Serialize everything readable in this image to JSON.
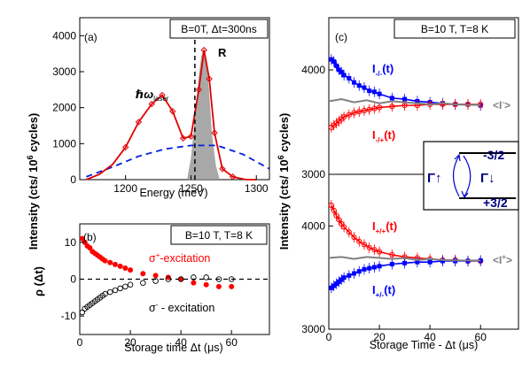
{
  "chart_data": [
    {
      "panel_label": "(a)",
      "type": "line",
      "header": "B=0T, Δt=300ns",
      "xlabel": "Energy (meV)",
      "xlim": [
        1165,
        1310
      ],
      "ylim": [
        0,
        4500
      ],
      "x_ticks": [
        "1200",
        "1250",
        "1300"
      ],
      "y_ticks": [
        "0",
        "1000",
        "2000",
        "3000",
        "4000"
      ],
      "annotations": {
        "peak": "R",
        "laser_symbol": "ℏω",
        "laser_sub": "laser"
      },
      "laser_energy": 1253,
      "series": [
        {
          "role": "spectrum",
          "color": "#e00000",
          "x": [
            1170,
            1180,
            1190,
            1200,
            1210,
            1220,
            1228,
            1236,
            1244,
            1250,
            1256,
            1260,
            1264,
            1268,
            1274,
            1282,
            1292,
            1300
          ],
          "y": [
            0,
            150,
            420,
            900,
            1600,
            2100,
            2350,
            1900,
            1150,
            1200,
            2500,
            3600,
            2800,
            1300,
            300,
            80,
            0,
            0
          ]
        },
        {
          "role": "filled_peak",
          "color": "#999999",
          "x": [
            1247,
            1250,
            1253,
            1256,
            1258,
            1260,
            1262,
            1264,
            1266,
            1269,
            1272
          ],
          "y": [
            0,
            600,
            1700,
            2900,
            3450,
            3650,
            3300,
            2400,
            1300,
            400,
            0
          ]
        },
        {
          "role": "broad_background",
          "color": "#0020e0",
          "x": [
            1170,
            1190,
            1210,
            1230,
            1250,
            1270,
            1290,
            1310
          ],
          "y": [
            80,
            350,
            650,
            850,
            950,
            950,
            700,
            300
          ]
        }
      ]
    },
    {
      "panel_label": "(b)",
      "type": "scatter",
      "header": "B=10 T, T=8 K",
      "xlabel": "Storage time Δt (μs)",
      "ylabel": "ρ (Δt)",
      "xlim": [
        0,
        75
      ],
      "ylim": [
        -15,
        15
      ],
      "x_ticks": [
        "0",
        "20",
        "40",
        "60"
      ],
      "y_ticks": [
        "-10",
        "0",
        "10"
      ],
      "series": [
        {
          "name_main": "σ",
          "name_sup": "+",
          "name_rest": "-excitation",
          "color": "#ff0000",
          "x": [
            1,
            2,
            3,
            4,
            5,
            6,
            7,
            8,
            9,
            10,
            12,
            14,
            16,
            18,
            20,
            25,
            30,
            35,
            40,
            45,
            50,
            55,
            60
          ],
          "y": [
            11,
            10,
            9,
            8.5,
            7.5,
            7,
            6.5,
            6,
            5.5,
            5,
            4.5,
            4,
            3.5,
            3,
            2.5,
            1.5,
            1,
            0.5,
            0,
            -1,
            -1.5,
            -2,
            -2
          ]
        },
        {
          "name_main": "σ",
          "name_sup": "-",
          "name_rest": " - excitation",
          "color": "#000000",
          "x": [
            1,
            2,
            3,
            4,
            5,
            6,
            7,
            8,
            9,
            10,
            12,
            14,
            16,
            18,
            20,
            25,
            30,
            35,
            40,
            45,
            50,
            55,
            60
          ],
          "y": [
            -9,
            -8,
            -7.5,
            -7,
            -6.5,
            -6,
            -5.5,
            -5,
            -4.5,
            -4,
            -3.5,
            -3,
            -2.5,
            -2,
            -1.5,
            -1,
            -0.5,
            0,
            0,
            0.5,
            0.5,
            0,
            0
          ]
        }
      ]
    },
    {
      "panel_label": "(c)",
      "type": "scatter",
      "header": "B=10 T, T=8 K",
      "xlabel": "Storage Time - Δt (μs)",
      "xlim": [
        0,
        75
      ],
      "x_ticks": [
        "0",
        "20",
        "40",
        "60"
      ],
      "subplots": [
        {
          "ylim": [
            3000,
            4500
          ],
          "y_ticks": [
            "3000",
            "4000"
          ],
          "series": [
            {
              "name_main": "I",
              "name_sub": "-/-",
              "name_tail": "(t)",
              "color": "#0000ff",
              "x": [
                1,
                2,
                3,
                4,
                5,
                6,
                8,
                10,
                12,
                14,
                16,
                18,
                20,
                25,
                30,
                35,
                40,
                45,
                50,
                55,
                60
              ],
              "y": [
                4100,
                4080,
                4040,
                4000,
                3980,
                3950,
                3920,
                3880,
                3850,
                3830,
                3800,
                3790,
                3770,
                3730,
                3720,
                3700,
                3690,
                3680,
                3670,
                3670,
                3660
              ]
            },
            {
              "name_main": "I",
              "name_sub": "-/+",
              "name_tail": "(t)",
              "color": "#ff0000",
              "x": [
                1,
                2,
                3,
                4,
                5,
                6,
                8,
                10,
                12,
                14,
                16,
                18,
                20,
                25,
                30,
                35,
                40,
                45,
                50,
                55,
                60
              ],
              "y": [
                3450,
                3470,
                3490,
                3510,
                3530,
                3550,
                3570,
                3590,
                3600,
                3610,
                3620,
                3630,
                3640,
                3650,
                3660,
                3660,
                3670,
                3670,
                3670,
                3670,
                3670
              ]
            },
            {
              "name_main": "<I",
              "name_sup": "-",
              "name_tail": ">",
              "color": "#808080",
              "x": [
                0,
                5,
                10,
                15,
                20,
                25,
                30,
                35,
                40,
                45,
                50,
                55,
                60
              ],
              "y": [
                3700,
                3720,
                3690,
                3710,
                3680,
                3700,
                3690,
                3680,
                3670,
                3680,
                3670,
                3665,
                3665
              ]
            }
          ]
        },
        {
          "ylim": [
            3000,
            4500
          ],
          "y_ticks": [
            "3000",
            "4000"
          ],
          "series": [
            {
              "name_main": "I",
              "name_sub": "+/+",
              "name_tail": "(t)",
              "color": "#ff0000",
              "x": [
                1,
                2,
                3,
                4,
                5,
                6,
                8,
                10,
                12,
                14,
                16,
                18,
                20,
                25,
                30,
                35,
                40,
                45,
                50,
                55,
                60
              ],
              "y": [
                4200,
                4150,
                4100,
                4060,
                4020,
                3990,
                3940,
                3890,
                3850,
                3820,
                3790,
                3770,
                3750,
                3720,
                3700,
                3690,
                3680,
                3670,
                3670,
                3660,
                3660
              ]
            },
            {
              "name_main": "I",
              "name_sub": "+/-",
              "name_tail": "(t)",
              "color": "#0000ff",
              "x": [
                1,
                2,
                3,
                4,
                5,
                6,
                8,
                10,
                12,
                14,
                16,
                18,
                20,
                25,
                30,
                35,
                40,
                45,
                50,
                55,
                60
              ],
              "y": [
                3400,
                3420,
                3440,
                3460,
                3480,
                3500,
                3520,
                3540,
                3560,
                3580,
                3590,
                3600,
                3610,
                3630,
                3640,
                3650,
                3650,
                3660,
                3660,
                3660,
                3665
              ]
            },
            {
              "name_main": "<I",
              "name_sup": "+",
              "name_tail": ">",
              "color": "#808080",
              "x": [
                0,
                5,
                10,
                15,
                20,
                25,
                30,
                35,
                40,
                45,
                50,
                55,
                60
              ],
              "y": [
                3690,
                3700,
                3680,
                3700,
                3690,
                3680,
                3690,
                3670,
                3680,
                3670,
                3665,
                3665,
                3665
              ]
            }
          ]
        }
      ],
      "inset": {
        "upper_level": "-3/2",
        "lower_level": "+3/2",
        "rate_up": "Γ↑",
        "rate_down": "Γ↓"
      }
    }
  ],
  "shared_ylabel_left": {
    "main": "Intensity (cts/ 10",
    "sup": "6",
    "tail": " cycles)"
  },
  "shared_ylabel_right": {
    "main": "Intensity (cts/ 10",
    "sup": "6",
    "tail": " cycles)"
  }
}
